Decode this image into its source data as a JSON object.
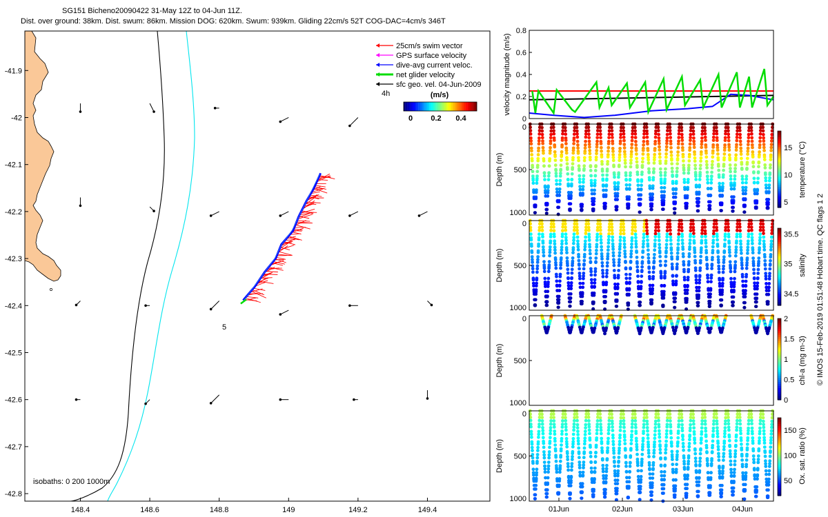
{
  "header": {
    "line1": "SG151 Bicheno20090422 31-May 12Z to 04-Jun 11Z.",
    "line2": "Dist. over ground: 38km. Dist. swum: 86km. Mission DOG: 620km. Swum: 939km. Gliding 22cm/s 52T COG-DAC=4cm/s 346T"
  },
  "map": {
    "legend": [
      {
        "label": "25cm/s swim vector",
        "color": "#ff0000"
      },
      {
        "label": "GPS surface velocity",
        "color": "#ff00ff"
      },
      {
        "label": "dive-avg current veloc.",
        "color": "#0000ff"
      },
      {
        "label": "net glider velocity",
        "color": "#00dd00"
      },
      {
        "label": "sfc geo. vel. 04-Jun-2009",
        "color": "#000000"
      }
    ],
    "colorbar_unit": "(m/s)",
    "colorbar_ticks": [
      "0",
      "0.2",
      "0.4"
    ],
    "note_4h": "4h",
    "isobath_label": "isobaths: 0   200  1000m",
    "marker_5": "5",
    "land_color": "#fac898",
    "isobath_200_color": "#000000",
    "isobath_1000_color": "#00e5ee"
  },
  "side_label": "© IMOS 15-Feb-2019 01:51:48 Hobart time. QC flags 1  2",
  "chart_data": [
    {
      "type": "scatter",
      "title": "",
      "xlabel": "",
      "ylabel": "",
      "x_ticks": [
        148.4,
        148.6,
        148.8,
        149,
        149.2,
        149.4
      ],
      "x_tick_labels": [
        "148.4",
        "148.6",
        "148.8",
        "149",
        "149.2",
        "149.4"
      ],
      "y_ticks": [
        -41.9,
        -42,
        -42.1,
        -42.2,
        -42.3,
        -42.4,
        -42.5,
        -42.6,
        -42.7,
        -42.8
      ],
      "y_tick_labels": [
        "-41.9",
        "-42",
        "-42.1",
        "-42.2",
        "-42.3",
        "-42.4",
        "-42.5",
        "-42.6",
        "-42.7",
        "-42.8"
      ],
      "xlim": [
        148.24,
        149.58
      ],
      "ylim": [
        -42.816,
        -41.816
      ],
      "glider_track": {
        "lon": [
          148.87,
          148.9,
          148.93,
          148.96,
          148.98,
          149.01,
          149.03,
          149.05,
          149.07,
          149.09
        ],
        "lat": [
          -42.39,
          -42.36,
          -42.33,
          -42.3,
          -42.27,
          -42.24,
          -42.21,
          -42.18,
          -42.15,
          -42.12
        ]
      },
      "geo_arrows": [
        {
          "lon": 148.4,
          "lat": -41.97,
          "u": 0.0,
          "v": -0.02
        },
        {
          "lon": 148.6,
          "lat": -41.97,
          "u": 0.01,
          "v": -0.02
        },
        {
          "lon": 148.8,
          "lat": -41.98,
          "u": -0.01,
          "v": 0.0
        },
        {
          "lon": 149.0,
          "lat": -42.0,
          "u": -0.02,
          "v": -0.01
        },
        {
          "lon": 149.2,
          "lat": -42.0,
          "u": -0.02,
          "v": -0.02
        },
        {
          "lon": 148.4,
          "lat": -42.17,
          "u": 0.0,
          "v": -0.02
        },
        {
          "lon": 148.6,
          "lat": -42.19,
          "u": 0.01,
          "v": -0.01
        },
        {
          "lon": 148.8,
          "lat": -42.2,
          "u": -0.02,
          "v": -0.01
        },
        {
          "lon": 149.0,
          "lat": -42.2,
          "u": -0.02,
          "v": -0.01
        },
        {
          "lon": 149.2,
          "lat": -42.2,
          "u": -0.02,
          "v": -0.01
        },
        {
          "lon": 149.4,
          "lat": -42.2,
          "u": -0.02,
          "v": -0.01
        },
        {
          "lon": 148.4,
          "lat": -42.39,
          "u": -0.01,
          "v": -0.01
        },
        {
          "lon": 148.6,
          "lat": -42.4,
          "u": -0.01,
          "v": 0.0
        },
        {
          "lon": 148.8,
          "lat": -42.39,
          "u": -0.02,
          "v": -0.02
        },
        {
          "lon": 149.0,
          "lat": -42.41,
          "u": -0.02,
          "v": -0.01
        },
        {
          "lon": 149.2,
          "lat": -42.4,
          "u": -0.02,
          "v": 0.0
        },
        {
          "lon": 149.4,
          "lat": -42.39,
          "u": 0.01,
          "v": -0.01
        },
        {
          "lon": 148.4,
          "lat": -42.6,
          "u": -0.01,
          "v": 0.0
        },
        {
          "lon": 148.6,
          "lat": -42.6,
          "u": -0.01,
          "v": -0.01
        },
        {
          "lon": 148.8,
          "lat": -42.59,
          "u": -0.02,
          "v": -0.02
        },
        {
          "lon": 149.0,
          "lat": -42.6,
          "u": -0.02,
          "v": 0.0
        },
        {
          "lon": 149.2,
          "lat": -42.6,
          "u": -0.01,
          "v": 0.0
        },
        {
          "lon": 149.4,
          "lat": -42.58,
          "u": 0.0,
          "v": -0.02
        }
      ]
    },
    {
      "type": "line",
      "title": "",
      "xlabel": "",
      "ylabel": "velocity magnitude (m/s)",
      "ylim": [
        0,
        0.8
      ],
      "y_ticks": [
        0,
        0.2,
        0.4,
        0.6,
        0.8
      ],
      "y_tick_labels": [
        "0",
        "0.2",
        "0.4",
        "0.6",
        "0.8"
      ],
      "xlim": [
        0,
        4
      ],
      "series": [
        {
          "color": "#ff0000",
          "x": [
            0,
            4
          ],
          "y": [
            0.25,
            0.25
          ]
        },
        {
          "color": "#000000",
          "x": [
            0,
            1.0,
            2.0,
            3.0,
            4.0
          ],
          "y": [
            0.17,
            0.18,
            0.19,
            0.2,
            0.21
          ]
        },
        {
          "color": "#0000ff",
          "x": [
            0,
            0.4,
            0.9,
            1.4,
            2.0,
            2.6,
            3.0,
            3.3,
            3.6,
            4.0
          ],
          "y": [
            0.05,
            0.03,
            0.01,
            0.03,
            0.07,
            0.09,
            0.11,
            0.22,
            0.21,
            0.17
          ]
        },
        {
          "color": "#00dd00",
          "x": [
            0.05,
            0.1,
            0.15,
            0.4,
            0.45,
            0.7,
            0.75,
            1.1,
            1.15,
            1.3,
            1.35,
            1.6,
            1.65,
            1.9,
            1.95,
            2.2,
            2.25,
            2.5,
            2.55,
            2.8,
            2.85,
            3.1,
            3.15,
            3.4,
            3.45,
            3.6,
            3.65,
            3.85,
            3.9,
            4.0
          ],
          "y": [
            0.25,
            0.05,
            0.25,
            0.05,
            0.26,
            0.08,
            0.06,
            0.33,
            0.1,
            0.28,
            0.12,
            0.32,
            0.1,
            0.33,
            0.06,
            0.36,
            0.08,
            0.38,
            0.12,
            0.35,
            0.1,
            0.4,
            0.1,
            0.42,
            0.1,
            0.38,
            0.1,
            0.45,
            0.12,
            0.2
          ]
        }
      ]
    },
    {
      "type": "scatter",
      "title": "",
      "ylabel": "Depth (m)",
      "color_label": "temperature (°C)",
      "ylim": [
        1000,
        0
      ],
      "y_tick_labels": [
        "0",
        "500",
        "1000"
      ],
      "cbar_ticks": [
        "5",
        "10",
        "15"
      ],
      "cbar_range": [
        4,
        18
      ],
      "n_dives": 21,
      "max_depth_m": 1000
    },
    {
      "type": "scatter",
      "title": "",
      "ylabel": "Depth (m)",
      "color_label": "salinity",
      "ylim": [
        1000,
        0
      ],
      "y_tick_labels": [
        "0",
        "500",
        "1000"
      ],
      "cbar_ticks": [
        "34.5",
        "35",
        "35.5"
      ],
      "cbar_range": [
        34.3,
        35.6
      ],
      "n_dives": 21,
      "max_depth_m": 1000
    },
    {
      "type": "scatter",
      "title": "",
      "ylabel": "Depth (m)",
      "color_label": "chl-a (mg m-3)",
      "ylim": [
        1000,
        0
      ],
      "y_tick_labels": [
        "0",
        "500",
        "1000"
      ],
      "cbar_ticks": [
        "0",
        "0.5",
        "1",
        "1.5",
        "2"
      ],
      "cbar_range": [
        0,
        2
      ],
      "n_dives": 21,
      "max_depth_m": 200
    },
    {
      "type": "scatter",
      "title": "",
      "ylabel": "Depth (m)",
      "xlabel": "",
      "color_label": "Ox. sat. ratio (%)",
      "ylim": [
        1000,
        0
      ],
      "y_tick_labels": [
        "0",
        "500",
        "1000"
      ],
      "x_tick_labels": [
        "01Jun",
        "02Jun",
        "03Jun",
        "04Jun"
      ],
      "cbar_ticks": [
        "50",
        "100",
        "150"
      ],
      "cbar_range": [
        20,
        175
      ],
      "n_dives": 21,
      "max_depth_m": 1000
    }
  ]
}
